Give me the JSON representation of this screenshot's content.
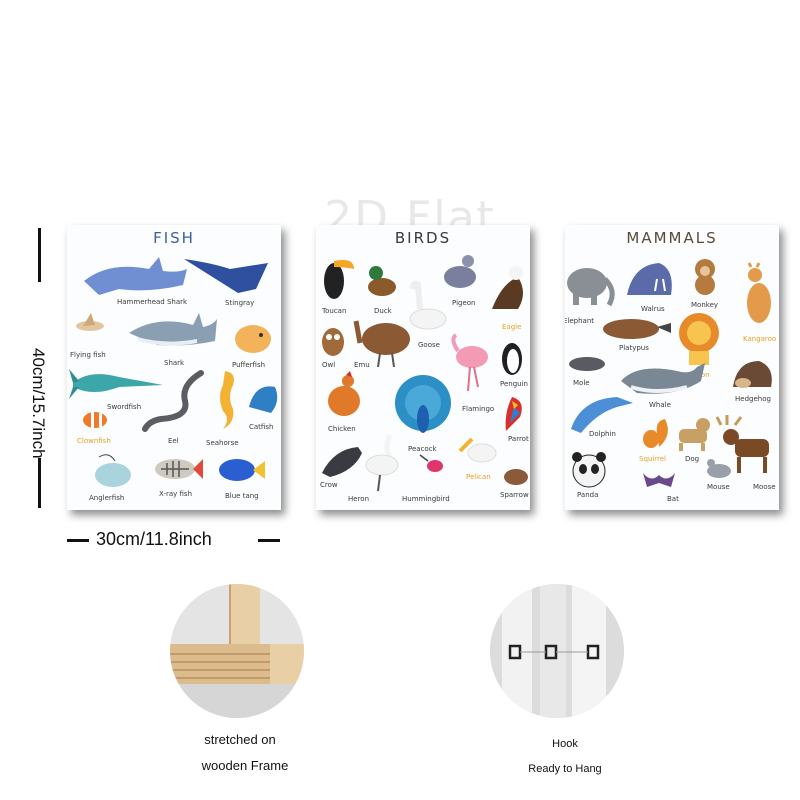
{
  "watermark": "2D Flat",
  "posters": {
    "fish": {
      "title": "FISH",
      "animals": [
        "Hammerhead Shark",
        "Stingray",
        "Flying fish",
        "Shark",
        "Pufferfish",
        "Swordfish",
        "Clownfish",
        "Eel",
        "Seahorse",
        "Catfish",
        "Anglerfish",
        "X-ray fish",
        "Blue tang"
      ]
    },
    "birds": {
      "title": "BIRDS",
      "animals": [
        "Toucan",
        "Duck",
        "Pigeon",
        "Eagle",
        "Owl",
        "Emu",
        "Goose",
        "Penguin",
        "Chicken",
        "Peacock",
        "Flamingo",
        "Parrot",
        "Crow",
        "Heron",
        "Hummingbird",
        "Pelican",
        "Sparrow"
      ]
    },
    "mammals": {
      "title": "MAMMALS",
      "animals": [
        "Elephant",
        "Walrus",
        "Monkey",
        "Kangaroo",
        "Platypus",
        "Lion",
        "Mole",
        "Whale",
        "Hedgehog",
        "Dolphin",
        "Squirrel",
        "Dog",
        "Moose",
        "Panda",
        "Bat",
        "Mouse"
      ]
    }
  },
  "dimensions": {
    "height": "40cm/15.7inch",
    "width": "30cm/11.8inch"
  },
  "features": {
    "frame_caption_line1": "stretched on",
    "frame_caption_line2": "wooden Frame",
    "hook_caption_line1": "Hook",
    "hook_caption_line2": "Ready to Hang"
  }
}
